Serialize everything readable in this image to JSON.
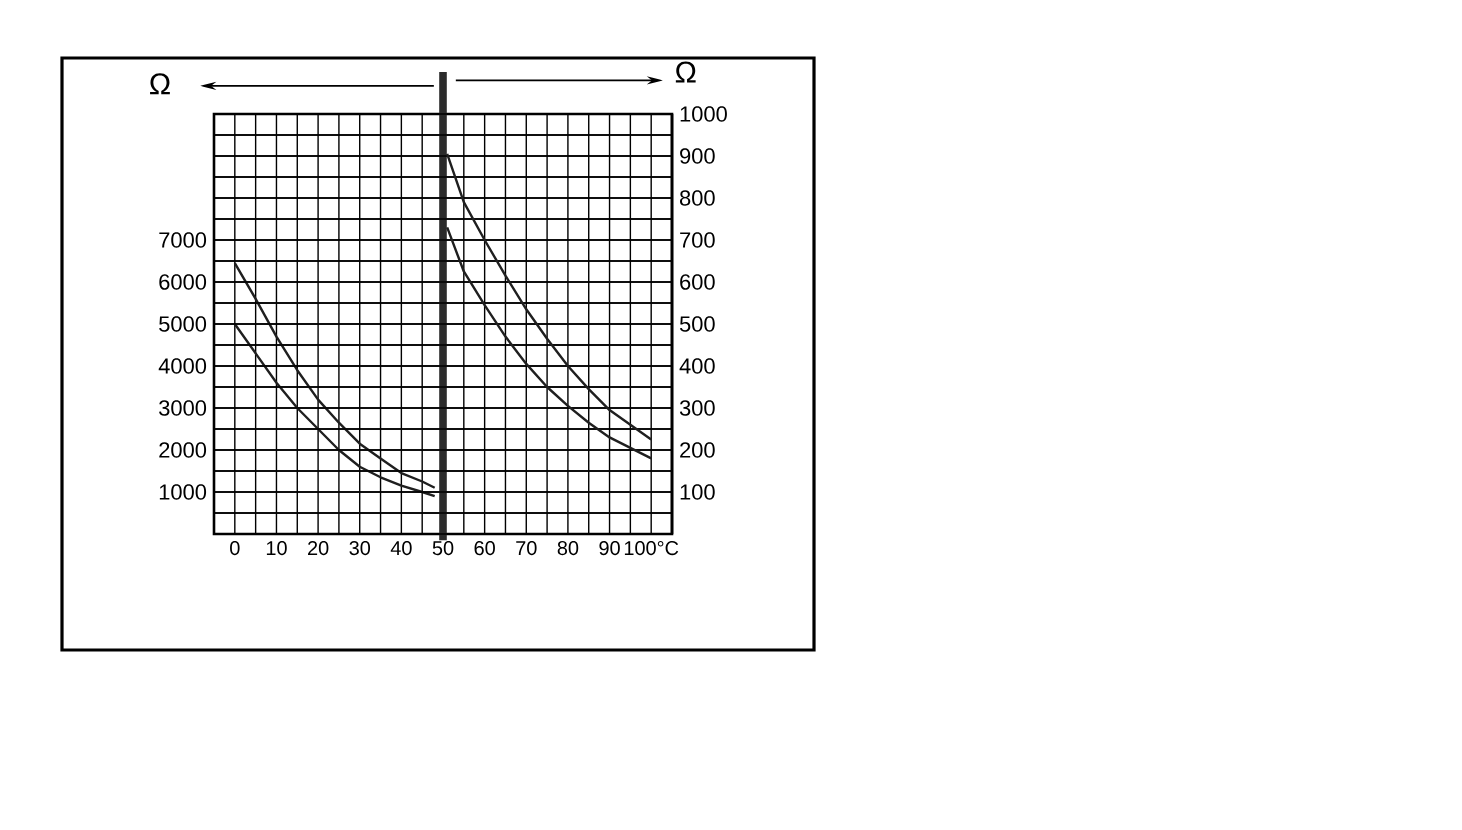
{
  "chart_data": {
    "type": "line",
    "ylabel": "Ω",
    "y2label": "Ω",
    "xlim": [
      -5,
      105
    ],
    "xticks": [
      0,
      {
        "value": 5,
        "label": null
      },
      10,
      {
        "value": 15,
        "label": null
      },
      20,
      {
        "value": 25,
        "label": null
      },
      30,
      {
        "value": 35,
        "label": null
      },
      40,
      {
        "value": 45,
        "label": null
      },
      50,
      {
        "value": 55,
        "label": null
      },
      60,
      {
        "value": 65,
        "label": null
      },
      70,
      {
        "value": 75,
        "label": null
      },
      80,
      {
        "value": 85,
        "label": null
      },
      90,
      {
        "value": 95,
        "label": null
      },
      {
        "value": 100,
        "label": "100°C"
      }
    ],
    "ylim": [
      0,
      10000
    ],
    "yticks": [
      {
        "value": 0,
        "label": null
      },
      {
        "value": 500,
        "label": null
      },
      1000,
      {
        "value": 1500,
        "label": null
      },
      2000,
      {
        "value": 2500,
        "label": null
      },
      3000,
      {
        "value": 3500,
        "label": null
      },
      4000,
      {
        "value": 4500,
        "label": null
      },
      5000,
      {
        "value": 5500,
        "label": null
      },
      6000,
      {
        "value": 6500,
        "label": null
      },
      7000,
      {
        "value": 7500,
        "label": null
      },
      {
        "value": 8000,
        "label": null
      },
      {
        "value": 8500,
        "label": null
      },
      {
        "value": 9000,
        "label": null
      },
      {
        "value": 9500,
        "label": null
      },
      {
        "value": 10000,
        "label": null
      }
    ],
    "y2lim": [
      0,
      1000
    ],
    "y2ticks": [
      {
        "value": 0,
        "label": null
      },
      {
        "value": 50,
        "label": null
      },
      100,
      {
        "value": 150,
        "label": null
      },
      200,
      {
        "value": 250,
        "label": null
      },
      300,
      {
        "value": 350,
        "label": null
      },
      400,
      {
        "value": 450,
        "label": null
      },
      500,
      {
        "value": 550,
        "label": null
      },
      600,
      {
        "value": 650,
        "label": null
      },
      700,
      {
        "value": 750,
        "label": null
      },
      800,
      {
        "value": 850,
        "label": null
      },
      900,
      {
        "value": 950,
        "label": null
      },
      1000
    ],
    "grid": true,
    "line_style": "solid",
    "ref_lines": [
      {
        "axis": "x",
        "value": 50,
        "color": "#2b2b2b"
      }
    ],
    "series": [
      {
        "color": "#1f1f1f",
        "x": [
          0,
          5,
          10,
          15,
          20,
          25,
          30,
          35,
          40,
          45,
          48
        ],
        "values": [
          6450,
          5600,
          4700,
          3900,
          3200,
          2650,
          2150,
          1800,
          1450,
          1250,
          1100
        ]
      },
      {
        "color": "#1f1f1f",
        "x": [
          0,
          5,
          10,
          15,
          20,
          25,
          30,
          35,
          40,
          45,
          48
        ],
        "values": [
          5000,
          4300,
          3600,
          3000,
          2500,
          2000,
          1600,
          1350,
          1150,
          1000,
          900
        ]
      },
      {
        "color": "#1f1f1f",
        "axis": "y2",
        "x": [
          51,
          55,
          60,
          65,
          70,
          75,
          80,
          85,
          90,
          95,
          100
        ],
        "values": [
          905,
          790,
          700,
          615,
          535,
          465,
          400,
          345,
          295,
          260,
          225
        ]
      },
      {
        "color": "#1f1f1f",
        "axis": "y2",
        "x": [
          51,
          55,
          60,
          65,
          70,
          75,
          80,
          85,
          90,
          95,
          100
        ],
        "values": [
          730,
          625,
          545,
          470,
          405,
          350,
          305,
          265,
          230,
          205,
          180
        ]
      }
    ]
  }
}
